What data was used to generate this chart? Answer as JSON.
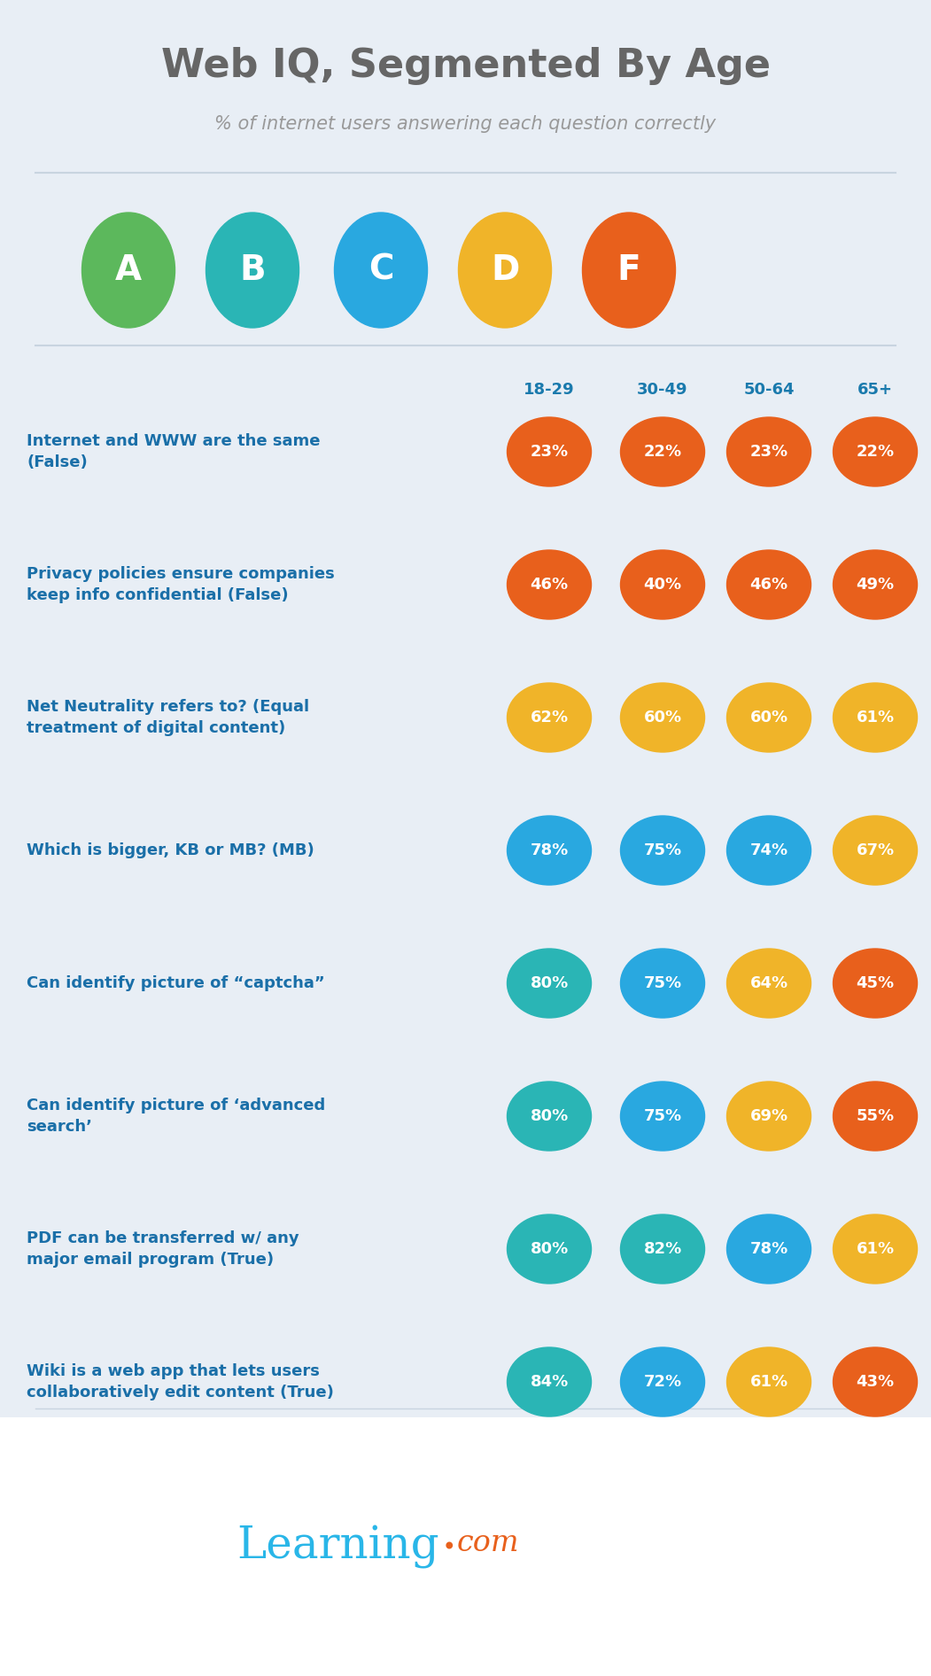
{
  "title": "Web IQ, Segmented By Age",
  "subtitle": "% of internet users answering each question correctly",
  "bg_top_color": "#e8eef5",
  "bg_bottom_color": "#ffffff",
  "title_color": "#666666",
  "subtitle_color": "#999999",
  "question_color": "#1a6fa8",
  "age_label_color": "#1a7aad",
  "age_groups": [
    "18-29",
    "30-49",
    "50-64",
    "65+"
  ],
  "grade_labels": [
    "A",
    "B",
    "C",
    "D",
    "F"
  ],
  "grade_colors": [
    "#5cb85c",
    "#2ab5b5",
    "#29a8e0",
    "#f0b429",
    "#e8601c"
  ],
  "footer_bg": "#ffffff",
  "footer_learning_color": "#29b6e8",
  "footer_dot_color": "#e8601c",
  "footer_com_color": "#e8601c",
  "questions": [
    {
      "text": "Internet and WWW are the same\n(False)",
      "values": [
        23,
        22,
        23,
        22
      ],
      "colors": [
        "#e8601c",
        "#e8601c",
        "#e8601c",
        "#e8601c"
      ]
    },
    {
      "text": "Privacy policies ensure companies\nkeep info confidential (False)",
      "values": [
        46,
        40,
        46,
        49
      ],
      "colors": [
        "#e8601c",
        "#e8601c",
        "#e8601c",
        "#e8601c"
      ]
    },
    {
      "text": "Net Neutrality refers to? (Equal\ntreatment of digital content)",
      "values": [
        62,
        60,
        60,
        61
      ],
      "colors": [
        "#f0b429",
        "#f0b429",
        "#f0b429",
        "#f0b429"
      ]
    },
    {
      "text": "Which is bigger, KB or MB? (MB)",
      "values": [
        78,
        75,
        74,
        67
      ],
      "colors": [
        "#29a8e0",
        "#29a8e0",
        "#29a8e0",
        "#f0b429"
      ]
    },
    {
      "text": "Can identify picture of “captcha”",
      "values": [
        80,
        75,
        64,
        45
      ],
      "colors": [
        "#2ab5b5",
        "#29a8e0",
        "#f0b429",
        "#e8601c"
      ]
    },
    {
      "text": "Can identify picture of ‘advanced\nsearch’",
      "values": [
        80,
        75,
        69,
        55
      ],
      "colors": [
        "#2ab5b5",
        "#29a8e0",
        "#f0b429",
        "#e8601c"
      ]
    },
    {
      "text": "PDF can be transferred w/ any\nmajor email program (True)",
      "values": [
        80,
        82,
        78,
        61
      ],
      "colors": [
        "#2ab5b5",
        "#2ab5b5",
        "#29a8e0",
        "#f0b429"
      ]
    },
    {
      "text": "Wiki is a web app that lets users\ncollaboratively edit content (True)",
      "values": [
        84,
        72,
        61,
        43
      ],
      "colors": [
        "#2ab5b5",
        "#29a8e0",
        "#f0b429",
        "#e8601c"
      ]
    }
  ],
  "fig_width": 10.51,
  "fig_height": 18.92,
  "dpi": 100
}
